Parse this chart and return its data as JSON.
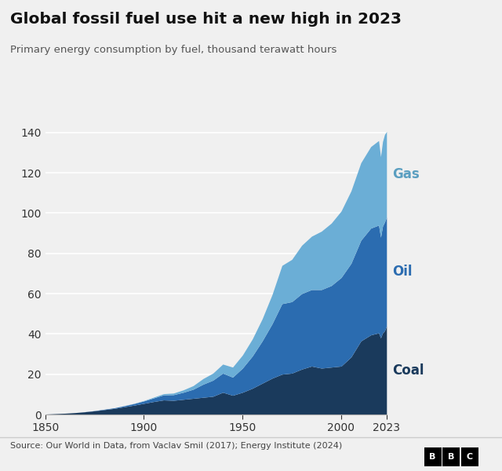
{
  "title": "Global fossil fuel use hit a new high in 2023",
  "subtitle": "Primary energy consumption by fuel, thousand terawatt hours",
  "source": "Source: Our World in Data, from Vaclav Smil (2017); Energy Institute (2024)",
  "color_coal": "#1a3a5c",
  "color_oil": "#2b6cb0",
  "color_gas": "#6baed6",
  "color_bg": "#f0f0f0",
  "ylim": [
    0,
    145
  ],
  "yticks": [
    0,
    20,
    40,
    60,
    80,
    100,
    120,
    140
  ],
  "years": [
    1850,
    1855,
    1860,
    1865,
    1870,
    1875,
    1880,
    1885,
    1890,
    1895,
    1900,
    1905,
    1910,
    1915,
    1920,
    1925,
    1930,
    1935,
    1940,
    1945,
    1950,
    1955,
    1960,
    1965,
    1970,
    1975,
    1980,
    1985,
    1990,
    1995,
    2000,
    2005,
    2010,
    2015,
    2019,
    2020,
    2021,
    2022,
    2023
  ],
  "coal": [
    0.2,
    0.4,
    0.6,
    0.9,
    1.3,
    1.8,
    2.4,
    3.0,
    3.8,
    4.6,
    5.5,
    6.4,
    7.2,
    7.0,
    7.5,
    8.0,
    8.5,
    9.0,
    11.0,
    9.5,
    11.0,
    13.0,
    15.5,
    18.0,
    20.0,
    20.5,
    22.5,
    24.0,
    23.0,
    23.5,
    24.0,
    28.5,
    36.5,
    39.5,
    40.5,
    38.0,
    40.5,
    41.5,
    44.0
  ],
  "oil": [
    0.0,
    0.0,
    0.0,
    0.0,
    0.05,
    0.1,
    0.2,
    0.3,
    0.5,
    0.8,
    1.2,
    1.8,
    2.5,
    2.8,
    3.5,
    4.5,
    6.5,
    8.0,
    9.5,
    9.0,
    12.0,
    16.0,
    21.0,
    27.0,
    35.0,
    35.5,
    37.5,
    38.0,
    39.0,
    40.5,
    44.0,
    46.5,
    50.0,
    53.0,
    53.5,
    50.0,
    53.0,
    54.0,
    54.0
  ],
  "gas": [
    0.0,
    0.0,
    0.0,
    0.0,
    0.0,
    0.0,
    0.0,
    0.0,
    0.05,
    0.1,
    0.2,
    0.4,
    0.6,
    0.8,
    1.2,
    1.8,
    2.8,
    3.5,
    4.5,
    5.0,
    6.5,
    8.5,
    11.0,
    14.5,
    19.0,
    21.0,
    24.0,
    26.5,
    29.0,
    31.0,
    33.0,
    36.0,
    38.5,
    40.5,
    42.0,
    40.0,
    42.0,
    43.5,
    42.5
  ],
  "label_coal": "Coal",
  "label_oil": "Oil",
  "label_gas": "Gas",
  "label_color_coal": "#1a3a5c",
  "label_color_oil": "#2b6cb0",
  "label_color_gas": "#5a9ec0"
}
